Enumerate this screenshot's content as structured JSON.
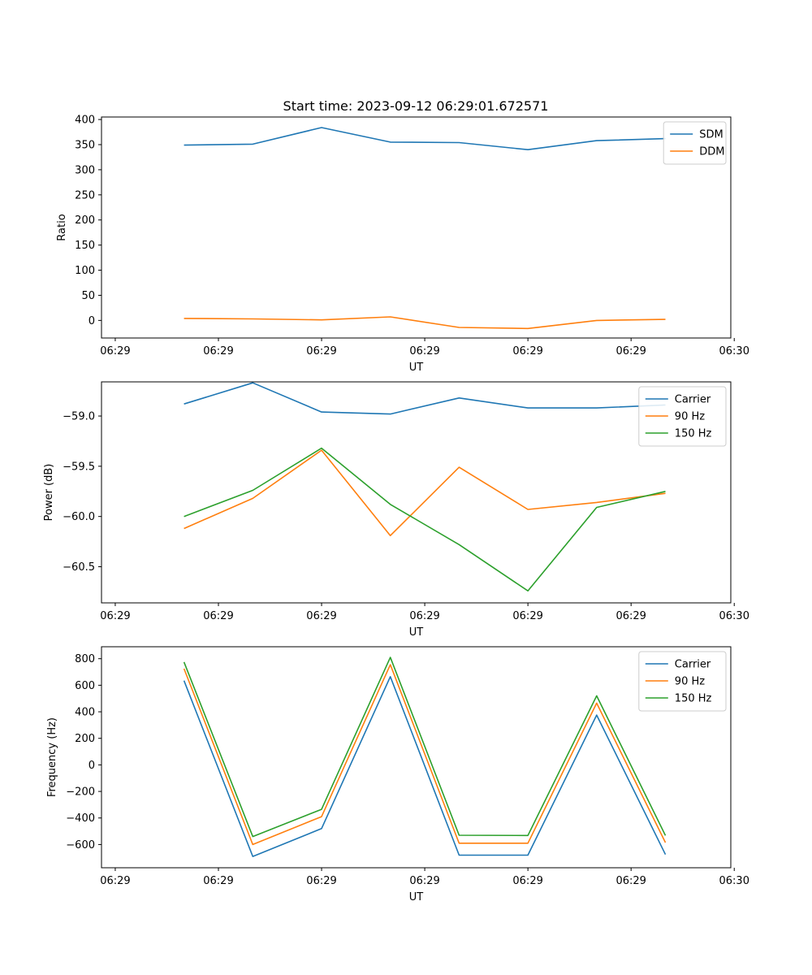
{
  "figure_title": "Start time: 2023-09-12 06:29:01.672571",
  "chart_data": [
    {
      "type": "line",
      "title": "Start time: 2023-09-12 06:29:01.672571",
      "xlabel": "UT",
      "ylabel": "Ratio",
      "x": [
        1,
        2,
        3,
        4,
        5,
        6,
        7,
        8
      ],
      "xlim": [
        -0.2,
        8.95
      ],
      "xticks": [
        0,
        1.5,
        3,
        4.5,
        6,
        7.5,
        9
      ],
      "xtick_labels": [
        "06:29",
        "06:29",
        "06:29",
        "06:29",
        "06:29",
        "06:29",
        "06:30"
      ],
      "ylim": [
        -35,
        405
      ],
      "yticks": [
        0,
        50,
        100,
        150,
        200,
        250,
        300,
        350,
        400
      ],
      "ytick_labels": [
        "0",
        "50",
        "100",
        "150",
        "200",
        "250",
        "300",
        "350",
        "400"
      ],
      "legend": "top-right",
      "series": [
        {
          "name": "SDM",
          "color": "#1f77b4",
          "values": [
            349,
            351,
            384,
            355,
            354,
            340,
            358,
            362
          ]
        },
        {
          "name": "DDM",
          "color": "#ff7f0e",
          "values": [
            4,
            3,
            1,
            7,
            -14,
            -16,
            0,
            2
          ]
        }
      ]
    },
    {
      "type": "line",
      "title": "",
      "xlabel": "UT",
      "ylabel": "Power (dB)",
      "x": [
        1,
        2,
        3,
        4,
        5,
        6,
        7,
        8
      ],
      "xlim": [
        -0.2,
        8.95
      ],
      "xticks": [
        0,
        1.5,
        3,
        4.5,
        6,
        7.5,
        9
      ],
      "xtick_labels": [
        "06:29",
        "06:29",
        "06:29",
        "06:29",
        "06:29",
        "06:29",
        "06:30"
      ],
      "ylim": [
        -60.86,
        -58.66
      ],
      "yticks": [
        -59.0,
        -59.5,
        -60.0,
        -60.5
      ],
      "ytick_labels": [
        "−59.0",
        "−59.5",
        "−60.0",
        "−60.5"
      ],
      "legend": "top-right",
      "series": [
        {
          "name": "Carrier",
          "color": "#1f77b4",
          "values": [
            -58.88,
            -58.67,
            -58.96,
            -58.98,
            -58.82,
            -58.92,
            -58.92,
            -58.89
          ]
        },
        {
          "name": "90 Hz",
          "color": "#ff7f0e",
          "values": [
            -60.12,
            -59.82,
            -59.34,
            -60.19,
            -59.51,
            -59.93,
            -59.86,
            -59.77
          ]
        },
        {
          "name": "150 Hz",
          "color": "#2ca02c",
          "values": [
            -60.0,
            -59.74,
            -59.32,
            -59.88,
            -60.28,
            -60.74,
            -59.91,
            -59.75
          ]
        }
      ]
    },
    {
      "type": "line",
      "title": "",
      "xlabel": "UT",
      "ylabel": "Frequency (Hz)",
      "x": [
        1,
        2,
        3,
        4,
        5,
        6,
        7,
        8
      ],
      "xlim": [
        -0.2,
        8.95
      ],
      "xticks": [
        0,
        1.5,
        3,
        4.5,
        6,
        7.5,
        9
      ],
      "xtick_labels": [
        "06:29",
        "06:29",
        "06:29",
        "06:29",
        "06:29",
        "06:29",
        "06:30"
      ],
      "ylim": [
        -775,
        890
      ],
      "yticks": [
        800,
        600,
        400,
        200,
        0,
        -200,
        -400,
        -600
      ],
      "ytick_labels": [
        "800",
        "600",
        "400",
        "200",
        "0",
        "−200",
        "−400",
        "−600"
      ],
      "legend": "top-right",
      "series": [
        {
          "name": "Carrier",
          "color": "#1f77b4",
          "values": [
            635,
            -690,
            -480,
            665,
            -680,
            -680,
            375,
            -675
          ]
        },
        {
          "name": "90 Hz",
          "color": "#ff7f0e",
          "values": [
            725,
            -600,
            -390,
            755,
            -590,
            -590,
            465,
            -585
          ]
        },
        {
          "name": "150 Hz",
          "color": "#2ca02c",
          "values": [
            775,
            -540,
            -335,
            810,
            -530,
            -532,
            520,
            -532
          ]
        }
      ]
    }
  ]
}
